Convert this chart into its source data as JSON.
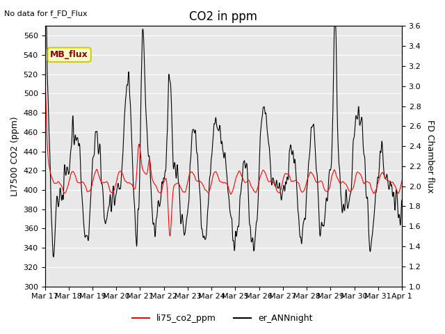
{
  "title": "CO2 in ppm",
  "top_left_text": "No data for f_FD_Flux",
  "ylabel_left": "LI7500 CO2 (ppm)",
  "ylabel_right": "FD Chamber flux",
  "ylim_left": [
    300,
    570
  ],
  "ylim_right": [
    1.0,
    3.6
  ],
  "yticks_left": [
    300,
    320,
    340,
    360,
    380,
    400,
    420,
    440,
    460,
    480,
    500,
    520,
    540,
    560
  ],
  "yticks_right": [
    1.0,
    1.2,
    1.4,
    1.6,
    1.8,
    2.0,
    2.2,
    2.4,
    2.6,
    2.8,
    3.0,
    3.2,
    3.4,
    3.6
  ],
  "xtick_labels": [
    "Mar 17",
    "Mar 18",
    "Mar 19",
    "Mar 20",
    "Mar 21",
    "Mar 22",
    "Mar 23",
    "Mar 24",
    "Mar 25",
    "Mar 26",
    "Mar 27",
    "Mar 28",
    "Mar 29",
    "Mar 30",
    "Mar 31",
    "Apr 1"
  ],
  "legend_labels": [
    "li75_co2_ppm",
    "er_ANNnight"
  ],
  "line_color_red": "#FF0000",
  "line_color_black": "#000000",
  "background_color": "#FFFFFF",
  "plot_bg_color": "#E8E8E8",
  "title_fontsize": 12,
  "label_fontsize": 9,
  "tick_fontsize": 8,
  "mb_flux_box_color": "#FFFFCC",
  "mb_flux_box_edge": "#CCCC00",
  "mb_flux_text": "MB_flux",
  "mb_flux_text_color": "#8B0000"
}
